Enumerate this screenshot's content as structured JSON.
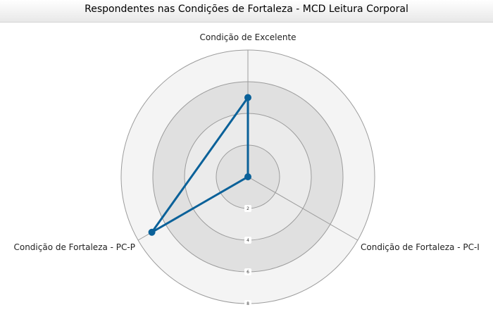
{
  "title": "Respondentes nas Condições de Fortaleza - MCD Leitura Corporal",
  "chart_data": {
    "type": "radar",
    "title": "Respondentes nas Condições de Fortaleza - MCD Leitura Corporal",
    "categories": [
      "Condição de Excelente",
      "Condição de Fortaleza - PC-I",
      "Condição de Fortaleza - PC-P"
    ],
    "series": [
      {
        "values": [
          5,
          0,
          7
        ],
        "color": "#0a6199"
      }
    ],
    "rlim": [
      0,
      8
    ],
    "ticks": [
      "2",
      "4",
      "6",
      "8"
    ],
    "tick_values": [
      2,
      4,
      6,
      8
    ],
    "grid": true,
    "legend": "none",
    "colors": {
      "series": "#0a6199",
      "band_odd": "#e0e0e0",
      "band_even": "#ebebeb",
      "outer_band": "#f4f4f4",
      "grid_line": "#9c9c9c"
    }
  }
}
